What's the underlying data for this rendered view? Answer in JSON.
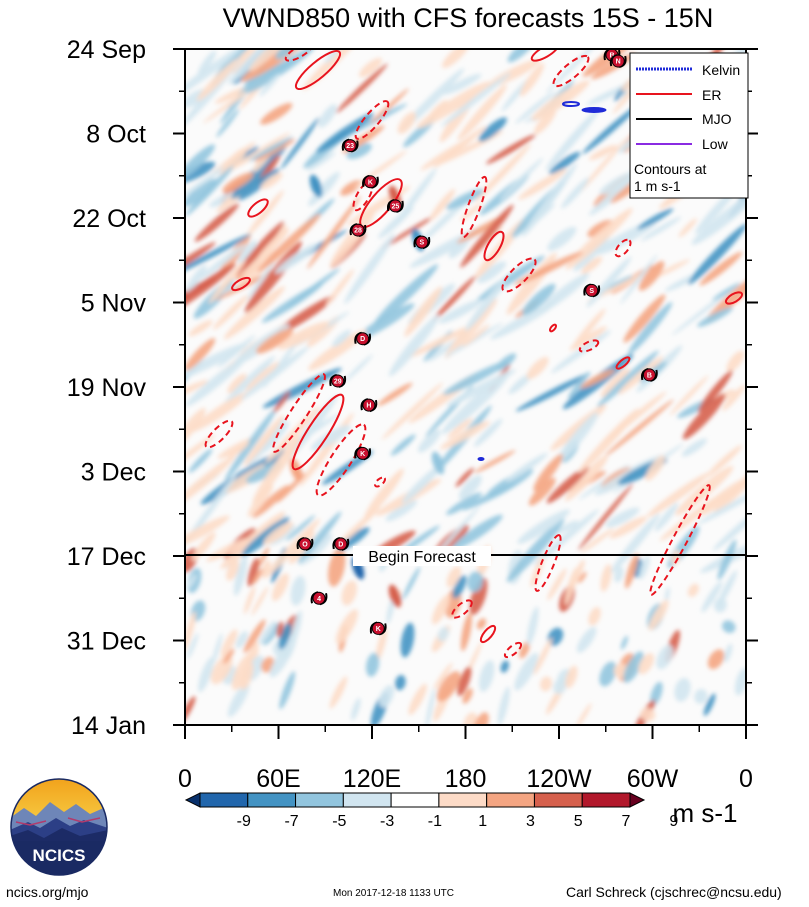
{
  "chart_data": {
    "type": "heatmap",
    "title": "VWND850 with CFS forecasts  15S - 15N",
    "time_ticks": [
      "24 Sep",
      "8 Oct",
      "22 Oct",
      "5 Nov",
      "19 Nov",
      "3 Dec",
      "17 Dec",
      "31 Dec",
      "14 Jan"
    ],
    "lon_ticks": [
      "0",
      "60E",
      "120E",
      "180",
      "120W",
      "60W",
      "0"
    ],
    "lon_range": [
      0,
      360
    ],
    "forecast_label": "Begin Forecast",
    "forecast_start": "17 Dec",
    "legend": [
      {
        "name": "Kelvin",
        "color": "#1f2bd8"
      },
      {
        "name": "ER",
        "color": "#e8141e"
      },
      {
        "name": "MJO",
        "color": "#000000"
      },
      {
        "name": "Low",
        "color": "#8a2be2"
      }
    ],
    "contour_note_1": "Contours at",
    "contour_note_2": "1 m s-1",
    "colorbar_levels": [
      "-9",
      "-7",
      "-5",
      "-3",
      "-1",
      "1",
      "3",
      "5",
      "7",
      "9"
    ],
    "colorbar_colors": [
      "#08306b",
      "#2166ac",
      "#4393c3",
      "#92c5de",
      "#d1e5f0",
      "#ffffff",
      "#fddbc7",
      "#f4a582",
      "#d6604d",
      "#b2182b",
      "#67001f"
    ],
    "units": "m s-1",
    "storm_labels": [
      {
        "label": "23",
        "lon": 106,
        "day": 16
      },
      {
        "label": "K",
        "lon": 119,
        "day": 22
      },
      {
        "label": "25",
        "lon": 135,
        "day": 26
      },
      {
        "label": "28",
        "lon": 111,
        "day": 30
      },
      {
        "label": "S",
        "lon": 152,
        "day": 32
      },
      {
        "label": "D",
        "lon": 114,
        "day": 48
      },
      {
        "label": "29",
        "lon": 98,
        "day": 55
      },
      {
        "label": "H",
        "lon": 118,
        "day": 59
      },
      {
        "label": "K",
        "lon": 114,
        "day": 67
      },
      {
        "label": "O",
        "lon": 77,
        "day": 82
      },
      {
        "label": "D",
        "lon": 100,
        "day": 82
      },
      {
        "label": "4",
        "lon": 86,
        "day": 91
      },
      {
        "label": "K",
        "lon": 124,
        "day": 96
      },
      {
        "label": "S",
        "lon": 261,
        "day": 40
      },
      {
        "label": "B",
        "lon": 274,
        "day": 1
      },
      {
        "label": "N",
        "lon": 278,
        "day": 2
      },
      {
        "label": "B",
        "lon": 298,
        "day": 54
      }
    ]
  },
  "logo": {
    "text": "NCICS"
  },
  "footer": {
    "left": "ncics.org/mjo",
    "center": "Mon 2017-12-18 1133 UTC",
    "right": "Carl Schreck (cjschrec@ncsu.edu)"
  },
  "colors": {
    "kelvin": "#1f2bd8",
    "er": "#e8141e"
  }
}
